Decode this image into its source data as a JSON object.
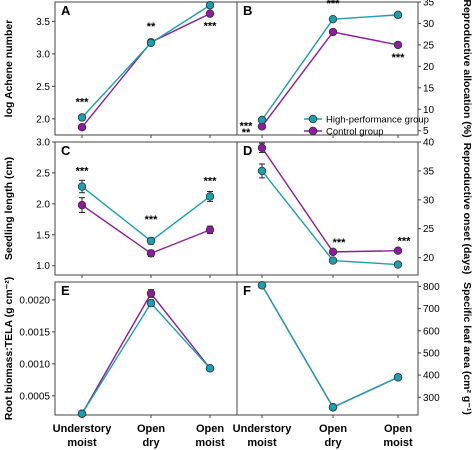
{
  "colors": {
    "high": "#1aa0b0",
    "control": "#8e1ba0",
    "axis": "#444444"
  },
  "legend": {
    "high": "High-performance group",
    "control": "Control group"
  },
  "chart_data": [
    {
      "type": "line",
      "panel": "A",
      "categories": [
        "Understory moist",
        "Open dry",
        "Open moist"
      ],
      "ylabel": "log Achene number",
      "axis": "left",
      "ylim": [
        1.75,
        3.8
      ],
      "yticks": [
        "2.0",
        "2.5",
        "3.0",
        "3.5"
      ],
      "series": [
        {
          "name": "High-performance group",
          "values": [
            2.02,
            3.17,
            3.75
          ],
          "err": [
            0.03,
            0.03,
            0.03
          ]
        },
        {
          "name": "Control group",
          "values": [
            1.87,
            3.18,
            3.62
          ],
          "err": [
            0.03,
            0.03,
            0.03
          ]
        }
      ],
      "stars": [
        "***",
        "**",
        "***"
      ]
    },
    {
      "type": "line",
      "panel": "B",
      "categories": [
        "Understory moist",
        "Open dry",
        "Open moist"
      ],
      "ylabel": "Reproductive allocation (%)",
      "axis": "right",
      "ylim": [
        4,
        35
      ],
      "yticks": [
        "5",
        "10",
        "15",
        "20",
        "25",
        "30",
        "35"
      ],
      "series": [
        {
          "name": "High-performance group",
          "values": [
            7.5,
            31.0,
            32.0
          ],
          "err": [
            0.5,
            0.5,
            0.5
          ]
        },
        {
          "name": "Control group",
          "values": [
            6.0,
            28.0,
            25.0
          ],
          "err": [
            0.5,
            0.5,
            0.5
          ]
        }
      ],
      "stars": [
        "***",
        "***",
        "***"
      ]
    },
    {
      "type": "line",
      "panel": "C",
      "categories": [
        "Understory moist",
        "Open dry",
        "Open moist"
      ],
      "ylabel": "Seedling length (cm)",
      "axis": "left",
      "ylim": [
        0.85,
        3.0
      ],
      "yticks": [
        "1.0",
        "1.5",
        "2.0",
        "2.5",
        "3.0"
      ],
      "series": [
        {
          "name": "High-performance group",
          "values": [
            2.28,
            1.4,
            2.12
          ],
          "err": [
            0.1,
            0.05,
            0.08
          ]
        },
        {
          "name": "Control group",
          "values": [
            1.98,
            1.2,
            1.58
          ],
          "err": [
            0.12,
            0.05,
            0.06
          ]
        }
      ],
      "stars": [
        "***",
        "***",
        "***"
      ]
    },
    {
      "type": "line",
      "panel": "D",
      "categories": [
        "Understory moist",
        "Open dry",
        "Open moist"
      ],
      "ylabel": "Reproductive onset (days)",
      "axis": "right",
      "ylim": [
        17,
        40
      ],
      "yticks": [
        "20",
        "25",
        "30",
        "35",
        "40"
      ],
      "series": [
        {
          "name": "High-performance group",
          "values": [
            35.0,
            19.5,
            18.8
          ],
          "err": [
            1.2,
            0.3,
            0.3
          ]
        },
        {
          "name": "Control group",
          "values": [
            39.0,
            21.0,
            21.2
          ],
          "err": [
            0.8,
            0.3,
            0.3
          ]
        }
      ],
      "stars": [
        "**",
        "***",
        "***"
      ]
    },
    {
      "type": "line",
      "panel": "E",
      "categories": [
        "Understory moist",
        "Open dry",
        "Open moist"
      ],
      "ylabel": "Root biomass:TELA (g cm⁻²)",
      "axis": "left",
      "ylim": [
        0.0002,
        0.00228
      ],
      "yticks": [
        "0.0005",
        "0.0010",
        "0.0015",
        "0.0020"
      ],
      "series": [
        {
          "name": "High-performance group",
          "values": [
            0.00022,
            0.00195,
            0.00093
          ],
          "err": [
            2e-05,
            5e-05,
            2e-05
          ]
        },
        {
          "name": "Control group",
          "values": [
            0.00022,
            0.0021,
            0.00093
          ],
          "err": [
            2e-05,
            6e-05,
            2e-05
          ]
        }
      ],
      "stars": [
        "",
        "",
        ""
      ]
    },
    {
      "type": "line",
      "panel": "F",
      "categories": [
        "Understory moist",
        "Open dry",
        "Open moist"
      ],
      "ylabel": "Specific leaf area (cm² g⁻¹)",
      "axis": "right",
      "ylim": [
        220,
        820
      ],
      "yticks": [
        "300",
        "400",
        "500",
        "600",
        "700",
        "800"
      ],
      "series": [
        {
          "name": "High-performance group",
          "values": [
            805,
            255,
            390
          ],
          "err": [
            6,
            4,
            4
          ]
        },
        {
          "name": "Control group",
          "values": [
            805,
            255,
            390
          ],
          "err": [
            6,
            4,
            4
          ]
        }
      ],
      "stars": [
        "",
        "",
        ""
      ]
    }
  ],
  "xlabels": [
    [
      "Understory",
      "moist"
    ],
    [
      "Open",
      "dry"
    ],
    [
      "Open",
      "moist"
    ]
  ]
}
